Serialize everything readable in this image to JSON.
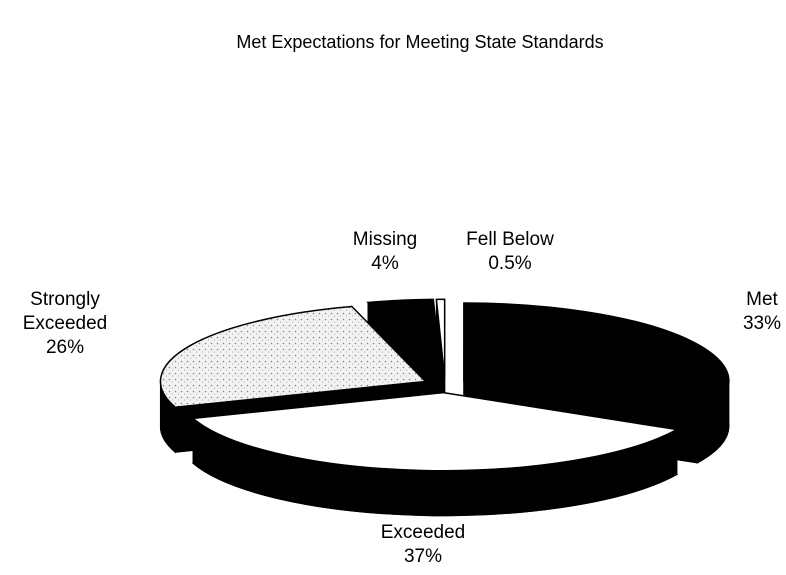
{
  "chart_data": {
    "type": "pie",
    "title": "Met Expectations for Meeting State Standards",
    "categories": [
      "Met",
      "Exceeded",
      "Strongly Exceeded",
      "Missing",
      "Fell Below"
    ],
    "values": [
      33,
      37,
      26,
      4,
      0.5
    ],
    "value_labels": [
      "33%",
      "37%",
      "26%",
      "4%",
      "0.5%"
    ],
    "colors": [
      "#000000",
      "#ffffff",
      "#e4e4e4",
      "#000000",
      "#ffffff"
    ]
  }
}
